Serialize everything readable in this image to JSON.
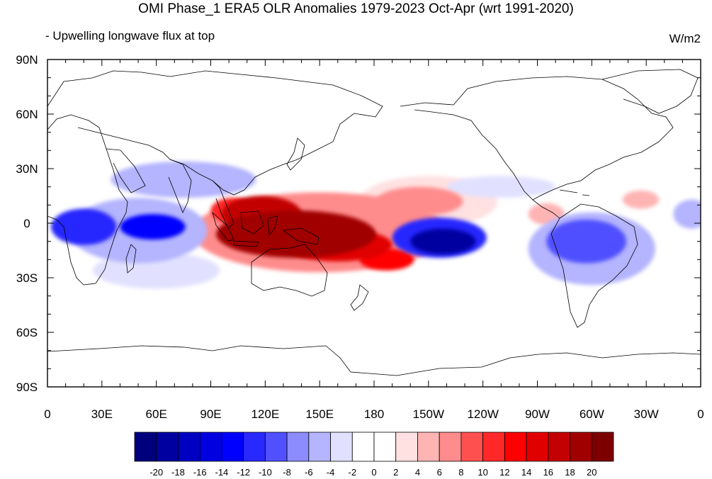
{
  "chart_data": {
    "type": "heatmap",
    "title": "OMI Phase_1 ERA5 OLR Anomalies 1979-2023 Oct-Apr (wrt 1991-2020)",
    "subtitle": "- Upwelling longwave flux at top",
    "units": "W/m2",
    "x_ticks": [
      {
        "lon": 0,
        "label": "0"
      },
      {
        "lon": 30,
        "label": "30E"
      },
      {
        "lon": 60,
        "label": "60E"
      },
      {
        "lon": 90,
        "label": "90E"
      },
      {
        "lon": 120,
        "label": "120E"
      },
      {
        "lon": 150,
        "label": "150E"
      },
      {
        "lon": 180,
        "label": "180"
      },
      {
        "lon": 210,
        "label": "150W"
      },
      {
        "lon": 240,
        "label": "120W"
      },
      {
        "lon": 270,
        "label": "90W"
      },
      {
        "lon": 300,
        "label": "60W"
      },
      {
        "lon": 330,
        "label": "30W"
      },
      {
        "lon": 360,
        "label": "0"
      }
    ],
    "y_ticks": [
      {
        "lat": 90,
        "label": "90N"
      },
      {
        "lat": 60,
        "label": "60N"
      },
      {
        "lat": 30,
        "label": "30N"
      },
      {
        "lat": 0,
        "label": "0"
      },
      {
        "lat": -30,
        "label": "30S"
      },
      {
        "lat": -60,
        "label": "60S"
      },
      {
        "lat": -90,
        "label": "90S"
      }
    ],
    "xlim": [
      0,
      360
    ],
    "ylim": [
      -90,
      90
    ],
    "colorbar": {
      "levels": [
        "-20",
        "-18",
        "-16",
        "-14",
        "-12",
        "-10",
        "-8",
        "-6",
        "-4",
        "-2",
        "0",
        "2",
        "4",
        "6",
        "8",
        "10",
        "12",
        "14",
        "16",
        "18",
        "20"
      ],
      "colors": [
        "#00007d",
        "#0000a0",
        "#0000c3",
        "#0000e1",
        "#0000ff",
        "#2828ff",
        "#5050ff",
        "#8c8cff",
        "#b4b4ff",
        "#e1e1ff",
        "#ffffff",
        "#ffffff",
        "#ffe1e1",
        "#ffb4b4",
        "#ff8c8c",
        "#ff5050",
        "#ff2828",
        "#ff0000",
        "#e10000",
        "#c30000",
        "#a00000",
        "#7d0000"
      ]
    },
    "anomaly_regions": [
      {
        "lon": 137,
        "lat": -6,
        "rx": 44,
        "ry": 13,
        "value": 18
      },
      {
        "lon": 118,
        "lat": 5,
        "rx": 22,
        "ry": 10,
        "value": 16
      },
      {
        "lon": 160,
        "lat": -12,
        "rx": 30,
        "ry": 9,
        "value": 14
      },
      {
        "lon": 187,
        "lat": -20,
        "rx": 15,
        "ry": 6,
        "value": 12
      },
      {
        "lon": 102,
        "lat": 7,
        "rx": 12,
        "ry": 7,
        "value": 10
      },
      {
        "lon": 150,
        "lat": -5,
        "rx": 70,
        "ry": 22,
        "value": 6
      },
      {
        "lon": 205,
        "lat": 12,
        "rx": 24,
        "ry": 8,
        "value": 6
      },
      {
        "lon": 210,
        "lat": 12,
        "rx": 38,
        "ry": 14,
        "value": 3
      },
      {
        "lon": 275,
        "lat": 5,
        "rx": 10,
        "ry": 6,
        "value": 5
      },
      {
        "lon": 327,
        "lat": 13,
        "rx": 10,
        "ry": 5,
        "value": 4
      },
      {
        "lon": 285,
        "lat": -18,
        "rx": 8,
        "ry": 6,
        "value": 4
      },
      {
        "lon": 218,
        "lat": -10,
        "rx": 18,
        "ry": 7,
        "value": -20
      },
      {
        "lon": 216,
        "lat": -8,
        "rx": 26,
        "ry": 11,
        "value": -12
      },
      {
        "lon": 58,
        "lat": -2,
        "rx": 18,
        "ry": 7,
        "value": -14
      },
      {
        "lon": 20,
        "lat": -2,
        "rx": 18,
        "ry": 10,
        "value": -12
      },
      {
        "lon": 50,
        "lat": -4,
        "rx": 38,
        "ry": 18,
        "value": -6
      },
      {
        "lon": 297,
        "lat": -10,
        "rx": 22,
        "ry": 12,
        "value": -10
      },
      {
        "lon": 300,
        "lat": -14,
        "rx": 35,
        "ry": 20,
        "value": -5
      },
      {
        "lon": 75,
        "lat": 24,
        "rx": 40,
        "ry": 10,
        "value": -6
      },
      {
        "lon": 250,
        "lat": 20,
        "rx": 30,
        "ry": 6,
        "value": -4
      },
      {
        "lon": 60,
        "lat": -26,
        "rx": 35,
        "ry": 10,
        "value": -4
      },
      {
        "lon": 355,
        "lat": 5,
        "rx": 10,
        "ry": 8,
        "value": -6
      }
    ],
    "grid": false,
    "legend": "bottom"
  }
}
